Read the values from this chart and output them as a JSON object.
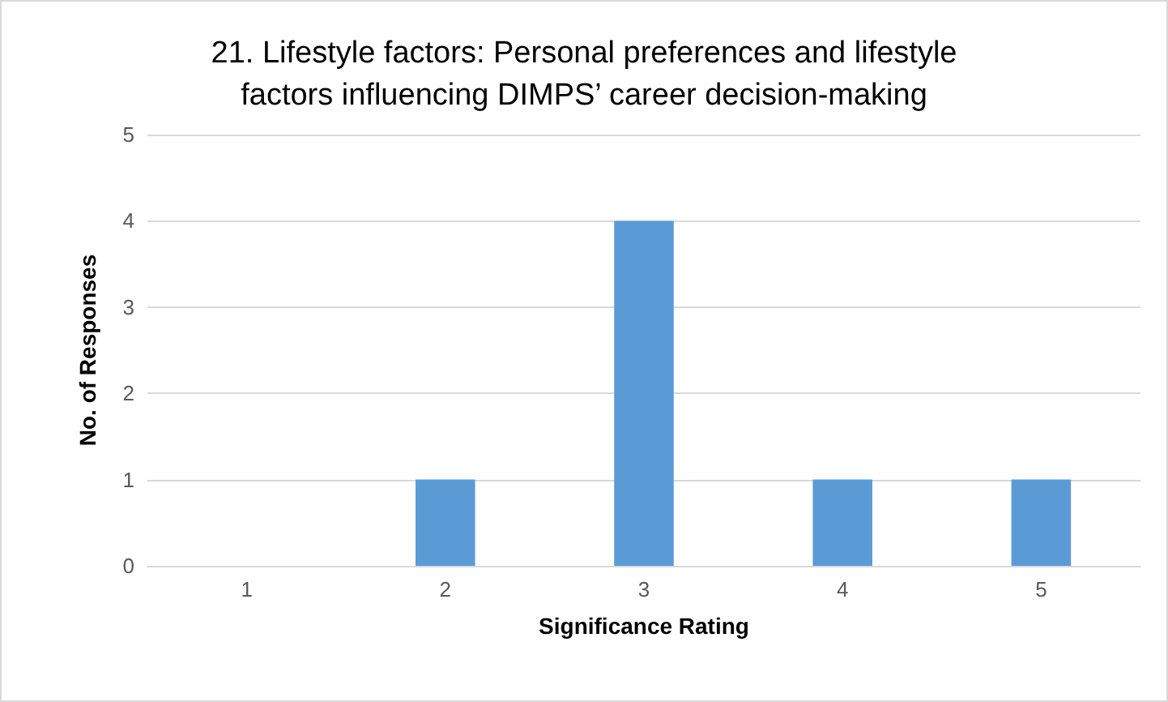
{
  "chart_data": {
    "type": "bar",
    "title": "21. Lifestyle factors: Personal preferences and lifestyle\nfactors influencing DIMPS’ career decision-making",
    "xlabel": "Significance Rating",
    "ylabel": "No. of Responses",
    "categories": [
      "1",
      "2",
      "3",
      "4",
      "5"
    ],
    "values": [
      0,
      1,
      4,
      1,
      1
    ],
    "color": "#5b9bd5",
    "ylim": [
      0,
      5
    ],
    "yticks": [
      0,
      1,
      2,
      3,
      4,
      5
    ],
    "grid": "y"
  }
}
